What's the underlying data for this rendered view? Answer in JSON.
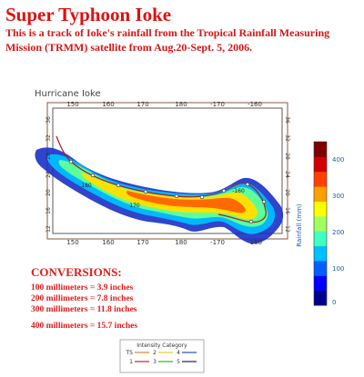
{
  "title": "Super Typhoon Ioke",
  "subtitle": "This is a track of Ioke's rainfall from the Tropical Rainfall Measuring Mission (TRMM) satellite from Aug.20-Sept. 5, 2006.",
  "map": {
    "label": "Hurricane Ioke",
    "top_ticks": [
      "150",
      "160",
      "170",
      "180",
      "-170",
      "-160"
    ],
    "bottom_ticks": [
      "150",
      "160",
      "170",
      "180",
      "-170",
      "-160"
    ],
    "left_ticks": [
      "36",
      "32",
      "28",
      "24",
      "20",
      "16",
      "12"
    ],
    "right_ticks": [
      "36",
      "32",
      "28",
      "24",
      "20",
      "16",
      "12"
    ],
    "interior_labels": [
      "180",
      "-160",
      "170"
    ]
  },
  "colorbar": {
    "label": "Rainfall (mm)",
    "ticks": [
      "400",
      "300",
      "200",
      "100",
      "0"
    ],
    "colors": [
      "#00008f",
      "#0000ff",
      "#0060ff",
      "#00c0ff",
      "#40ffbf",
      "#a0ff60",
      "#ffff00",
      "#ffa000",
      "#ff4000",
      "#d40000",
      "#800000"
    ]
  },
  "conversions": {
    "heading": "CONVERSIONS:",
    "lines": [
      "100 millimeters = 3.9 inches",
      "200 millimeters = 7.8 inches",
      "300 millimeters = 11.8 inches",
      "400 millimeters = 15.7 inches"
    ]
  },
  "intensity_legend": {
    "title": "Intensity Category",
    "items": [
      {
        "label": "TS",
        "color": "#d08a3a"
      },
      {
        "label": "1",
        "color": "#d02020"
      },
      {
        "label": "2",
        "color": "#e0d030"
      },
      {
        "label": "3",
        "color": "#30b030"
      },
      {
        "label": "4",
        "color": "#2050c0"
      },
      {
        "label": "5",
        "color": "#202060"
      }
    ]
  }
}
